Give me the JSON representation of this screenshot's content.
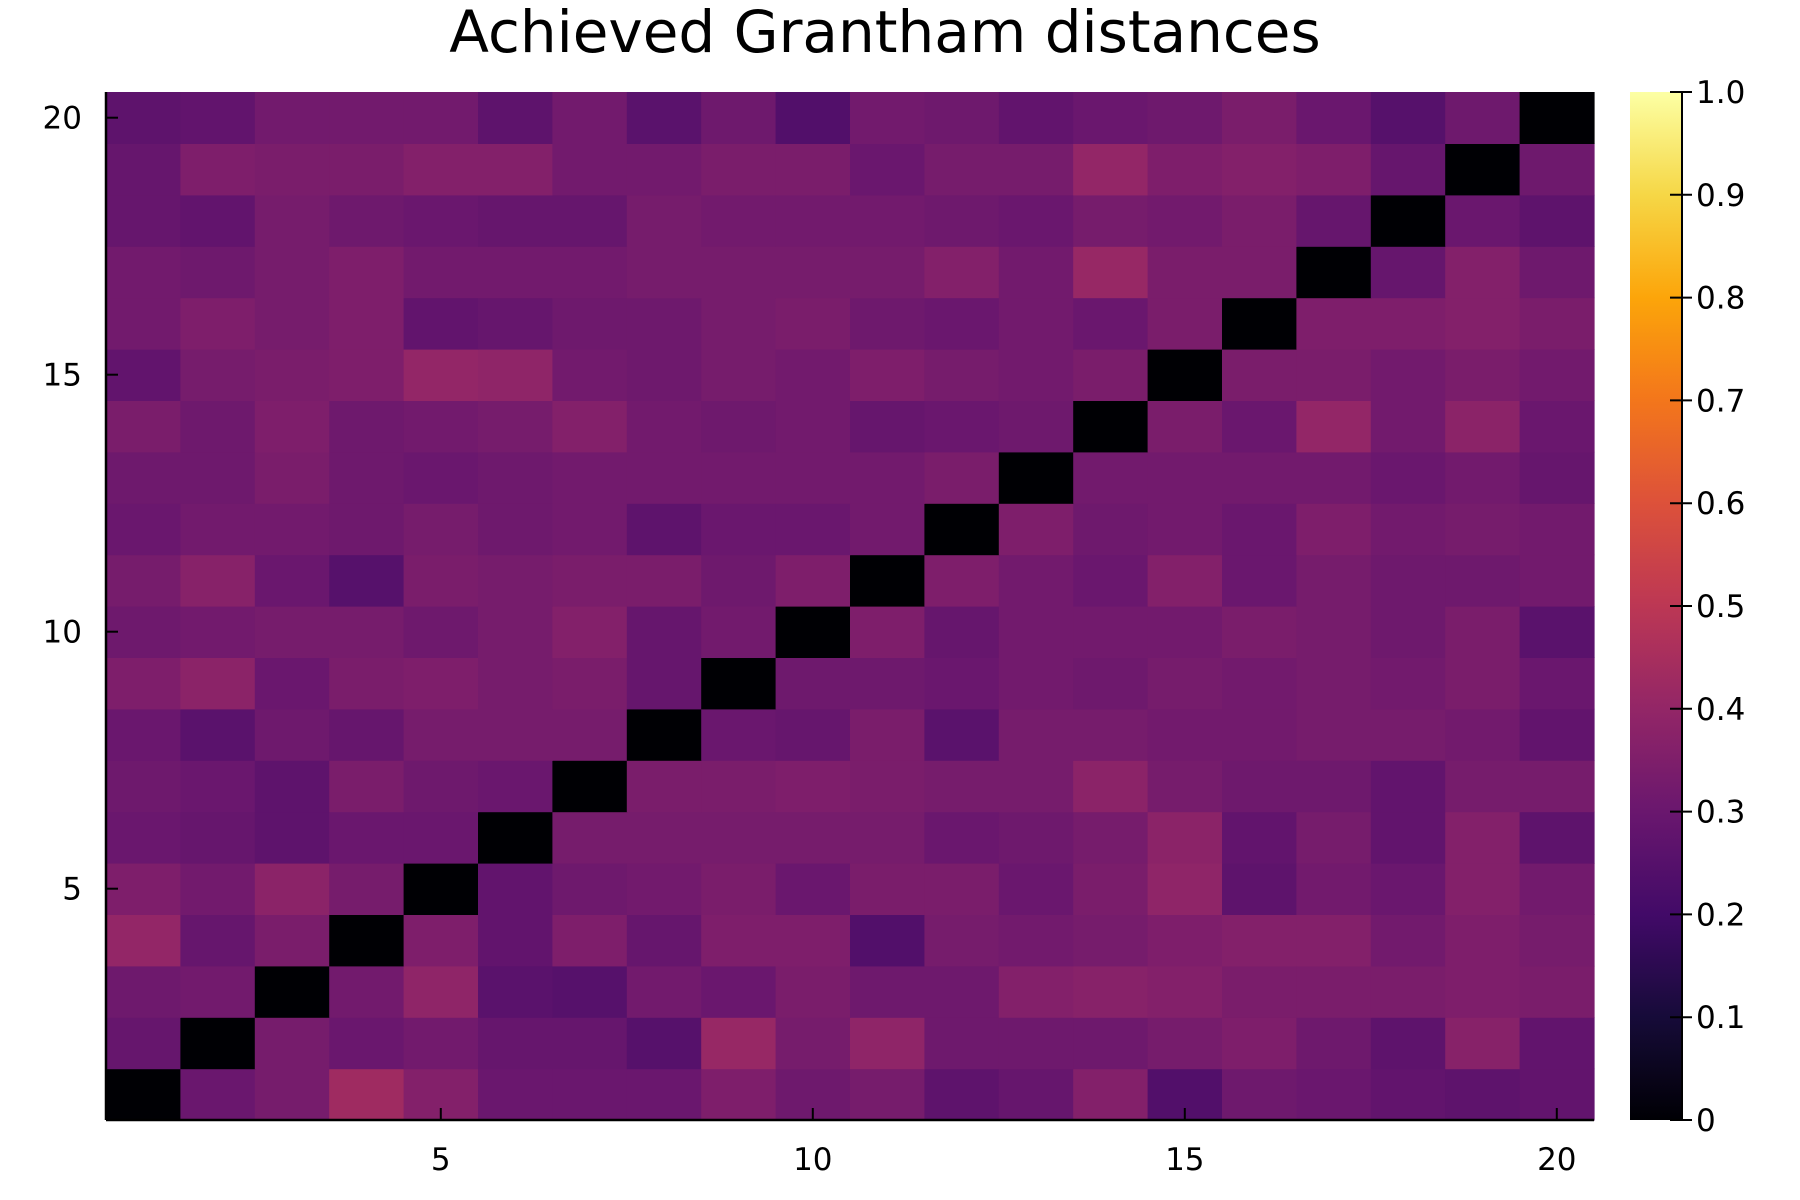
{
  "chart_data": {
    "type": "heatmap",
    "title": "Achieved Grantham distances",
    "xlabel": "",
    "ylabel": "",
    "colormap": "inferno",
    "x": [
      1,
      2,
      3,
      4,
      5,
      6,
      7,
      8,
      9,
      10,
      11,
      12,
      13,
      14,
      15,
      16,
      17,
      18,
      19,
      20
    ],
    "y": [
      1,
      2,
      3,
      4,
      5,
      6,
      7,
      8,
      9,
      10,
      11,
      12,
      13,
      14,
      15,
      16,
      17,
      18,
      19,
      20
    ],
    "x_ticks": [
      5,
      10,
      15,
      20
    ],
    "y_ticks": [
      5,
      10,
      15,
      20
    ],
    "xlim": [
      0.5,
      20.5
    ],
    "ylim": [
      0.5,
      20.5
    ],
    "clim": [
      0,
      1
    ],
    "colorbar_ticks": [
      0,
      0.1,
      0.2,
      0.3,
      0.4,
      0.5,
      0.6,
      0.7,
      0.8,
      0.9,
      1.0
    ],
    "colorbar_tick_labels": [
      "0",
      "0.1",
      "0.2",
      "0.3",
      "0.4",
      "0.5",
      "0.6",
      "0.7",
      "0.8",
      "0.9",
      "1.0"
    ],
    "z": [
      [
        0.0,
        0.3,
        0.33,
        0.43,
        0.36,
        0.3,
        0.3,
        0.3,
        0.35,
        0.31,
        0.33,
        0.27,
        0.29,
        0.36,
        0.24,
        0.31,
        0.3,
        0.28,
        0.27,
        0.28
      ],
      [
        0.29,
        0.0,
        0.33,
        0.3,
        0.32,
        0.29,
        0.29,
        0.25,
        0.41,
        0.33,
        0.39,
        0.31,
        0.31,
        0.31,
        0.33,
        0.35,
        0.31,
        0.27,
        0.37,
        0.28
      ],
      [
        0.31,
        0.32,
        0.0,
        0.32,
        0.39,
        0.26,
        0.25,
        0.32,
        0.3,
        0.34,
        0.31,
        0.31,
        0.36,
        0.37,
        0.36,
        0.34,
        0.34,
        0.34,
        0.35,
        0.34
      ],
      [
        0.4,
        0.29,
        0.34,
        0.0,
        0.35,
        0.28,
        0.35,
        0.29,
        0.35,
        0.35,
        0.24,
        0.33,
        0.32,
        0.33,
        0.35,
        0.36,
        0.36,
        0.32,
        0.35,
        0.33
      ],
      [
        0.35,
        0.32,
        0.38,
        0.33,
        0.0,
        0.28,
        0.31,
        0.32,
        0.34,
        0.3,
        0.34,
        0.34,
        0.3,
        0.34,
        0.39,
        0.27,
        0.32,
        0.3,
        0.36,
        0.32
      ],
      [
        0.3,
        0.29,
        0.27,
        0.3,
        0.3,
        0.0,
        0.33,
        0.33,
        0.33,
        0.33,
        0.33,
        0.3,
        0.31,
        0.33,
        0.38,
        0.28,
        0.33,
        0.28,
        0.36,
        0.27
      ],
      [
        0.31,
        0.3,
        0.27,
        0.34,
        0.31,
        0.3,
        0.0,
        0.34,
        0.34,
        0.35,
        0.34,
        0.33,
        0.33,
        0.38,
        0.33,
        0.31,
        0.31,
        0.28,
        0.33,
        0.33
      ],
      [
        0.3,
        0.26,
        0.31,
        0.29,
        0.33,
        0.33,
        0.33,
        0.0,
        0.3,
        0.29,
        0.34,
        0.26,
        0.33,
        0.33,
        0.32,
        0.32,
        0.33,
        0.33,
        0.32,
        0.28
      ],
      [
        0.35,
        0.38,
        0.3,
        0.34,
        0.35,
        0.33,
        0.34,
        0.29,
        0.0,
        0.31,
        0.31,
        0.3,
        0.32,
        0.31,
        0.33,
        0.32,
        0.33,
        0.32,
        0.34,
        0.3
      ],
      [
        0.31,
        0.32,
        0.33,
        0.33,
        0.31,
        0.33,
        0.36,
        0.29,
        0.32,
        0.0,
        0.35,
        0.29,
        0.32,
        0.32,
        0.32,
        0.34,
        0.33,
        0.31,
        0.34,
        0.26
      ],
      [
        0.33,
        0.37,
        0.3,
        0.25,
        0.34,
        0.33,
        0.34,
        0.34,
        0.31,
        0.35,
        0.0,
        0.35,
        0.32,
        0.3,
        0.36,
        0.3,
        0.33,
        0.31,
        0.31,
        0.32
      ],
      [
        0.3,
        0.32,
        0.32,
        0.31,
        0.33,
        0.31,
        0.32,
        0.27,
        0.3,
        0.3,
        0.32,
        0.0,
        0.35,
        0.31,
        0.32,
        0.3,
        0.35,
        0.32,
        0.33,
        0.32
      ],
      [
        0.31,
        0.31,
        0.34,
        0.31,
        0.3,
        0.31,
        0.32,
        0.32,
        0.32,
        0.32,
        0.32,
        0.34,
        0.0,
        0.32,
        0.32,
        0.32,
        0.32,
        0.3,
        0.32,
        0.29
      ],
      [
        0.34,
        0.31,
        0.35,
        0.31,
        0.32,
        0.33,
        0.36,
        0.32,
        0.31,
        0.32,
        0.29,
        0.3,
        0.31,
        0.0,
        0.34,
        0.3,
        0.4,
        0.32,
        0.38,
        0.3
      ],
      [
        0.28,
        0.33,
        0.34,
        0.35,
        0.4,
        0.39,
        0.32,
        0.31,
        0.33,
        0.32,
        0.35,
        0.33,
        0.32,
        0.34,
        0.0,
        0.34,
        0.34,
        0.32,
        0.34,
        0.32
      ],
      [
        0.32,
        0.35,
        0.33,
        0.35,
        0.28,
        0.29,
        0.31,
        0.31,
        0.33,
        0.34,
        0.31,
        0.3,
        0.32,
        0.3,
        0.34,
        0.0,
        0.35,
        0.35,
        0.36,
        0.34
      ],
      [
        0.32,
        0.31,
        0.33,
        0.35,
        0.32,
        0.32,
        0.32,
        0.33,
        0.33,
        0.33,
        0.33,
        0.36,
        0.32,
        0.41,
        0.34,
        0.34,
        0.0,
        0.29,
        0.36,
        0.31
      ],
      [
        0.29,
        0.28,
        0.33,
        0.31,
        0.3,
        0.29,
        0.29,
        0.33,
        0.32,
        0.32,
        0.32,
        0.31,
        0.3,
        0.33,
        0.32,
        0.34,
        0.29,
        0.0,
        0.3,
        0.27
      ],
      [
        0.29,
        0.35,
        0.34,
        0.34,
        0.36,
        0.36,
        0.32,
        0.32,
        0.34,
        0.34,
        0.3,
        0.33,
        0.33,
        0.4,
        0.35,
        0.36,
        0.35,
        0.29,
        0.0,
        0.31
      ],
      [
        0.27,
        0.28,
        0.32,
        0.32,
        0.32,
        0.27,
        0.32,
        0.26,
        0.31,
        0.24,
        0.32,
        0.31,
        0.28,
        0.3,
        0.31,
        0.34,
        0.3,
        0.25,
        0.31,
        0.0
      ]
    ]
  }
}
